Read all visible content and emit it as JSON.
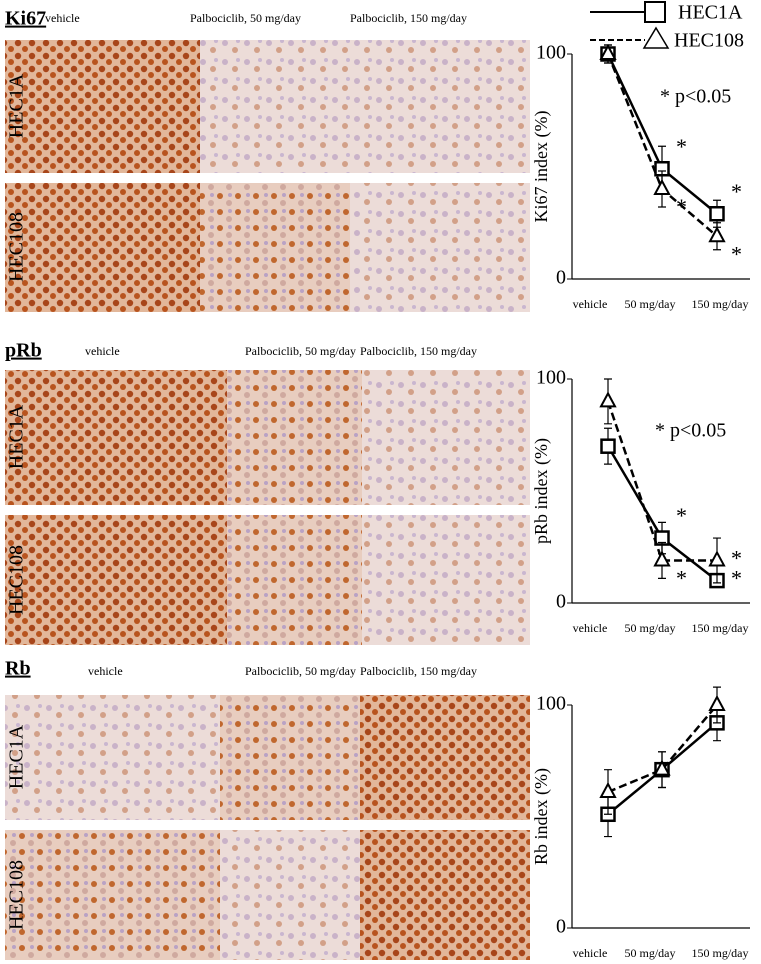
{
  "panels": [
    {
      "label": "Ki67",
      "columns": [
        "vehicle",
        "Palbociclib, 50 mg/day",
        "Palbociclib, 150 mg/day"
      ],
      "rows": [
        "HEC1A",
        "HEC108"
      ]
    },
    {
      "label": "pRb",
      "columns": [
        "vehicle",
        "Palbociclib, 50 mg/day",
        "Palbociclib, 150 mg/day"
      ],
      "rows": [
        "HEC1A",
        "HEC108"
      ]
    },
    {
      "label": "Rb",
      "columns": [
        "vehicle",
        "Palbociclib, 50 mg/day",
        "Palbociclib, 150 mg/day"
      ],
      "rows": [
        "HEC1A",
        "HEC108"
      ]
    }
  ],
  "chart_data": [
    {
      "type": "line",
      "ylabel": "Ki67 index (%)",
      "annotation": "* p<0.05",
      "categories": [
        "vehicle",
        "50 mg/day",
        "150 mg/day"
      ],
      "ylim": [
        0,
        100
      ],
      "yticks": [
        0,
        100
      ],
      "series": [
        {
          "name": "HEC1A",
          "color": "#000000",
          "marker": "square",
          "dashed": false,
          "values": [
            100,
            49,
            29
          ],
          "errors": [
            4,
            10,
            6
          ],
          "significance": [
            null,
            "*",
            "*"
          ]
        },
        {
          "name": "HEC108",
          "color": "#000000",
          "marker": "triangle",
          "dashed": true,
          "values": [
            100,
            40,
            19
          ],
          "errors": [
            4,
            8,
            6
          ],
          "significance": [
            null,
            "*",
            "*"
          ]
        }
      ]
    },
    {
      "type": "line",
      "ylabel": "pRb index (%)",
      "annotation": "* p<0.05",
      "categories": [
        "vehicle",
        "50 mg/day",
        "150 mg/day"
      ],
      "ylim": [
        0,
        100
      ],
      "yticks": [
        0,
        100
      ],
      "series": [
        {
          "color": "#000000",
          "marker": "square",
          "dashed": false,
          "values": [
            70,
            29,
            10
          ],
          "errors": [
            8,
            7,
            3
          ],
          "significance": [
            null,
            "*",
            "*"
          ]
        },
        {
          "color": "#000000",
          "marker": "triangle",
          "dashed": true,
          "values": [
            90,
            19,
            19
          ],
          "errors": [
            10,
            8,
            10
          ],
          "significance": [
            null,
            "*",
            "*"
          ]
        }
      ]
    },
    {
      "type": "line",
      "ylabel": "Rb index (%)",
      "categories": [
        "vehicle",
        "50 mg/day",
        "150 mg/day"
      ],
      "ylim": [
        0,
        100
      ],
      "yticks": [
        0,
        100
      ],
      "series": [
        {
          "color": "#000000",
          "marker": "square",
          "dashed": false,
          "values": [
            51,
            71,
            92
          ],
          "errors": [
            10,
            8,
            8
          ]
        },
        {
          "color": "#000000",
          "marker": "triangle",
          "dashed": true,
          "values": [
            61,
            71,
            100
          ],
          "errors": [
            10,
            8,
            8
          ]
        }
      ]
    }
  ]
}
